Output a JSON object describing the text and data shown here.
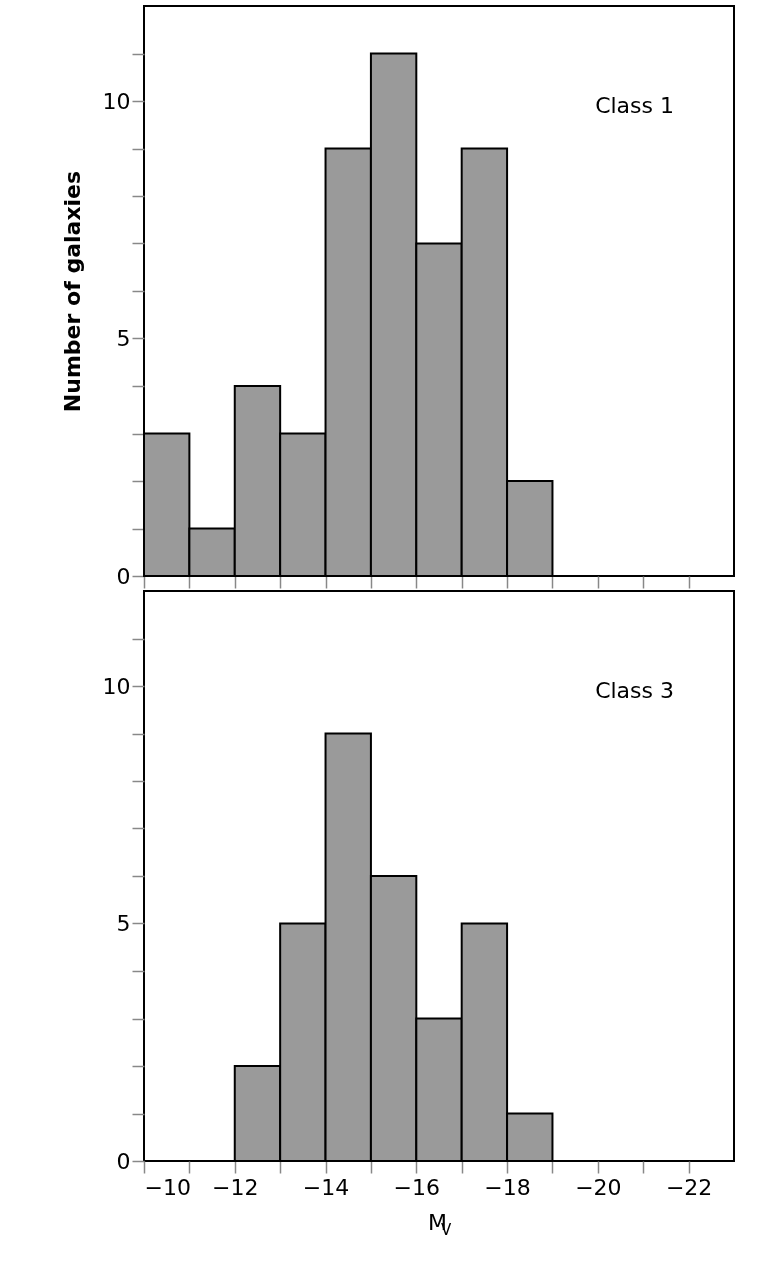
{
  "chart_data": [
    {
      "type": "histogram",
      "ylabel": "Number of galaxies",
      "annotations": [
        "Class 1"
      ],
      "color": "#9a9a9a",
      "bins": [
        -10,
        -11,
        -12,
        -13,
        -14,
        -15,
        -16,
        -17,
        -18,
        -19
      ],
      "values": [
        3,
        1,
        4,
        3,
        9,
        11,
        7,
        9,
        2
      ],
      "xlim": [
        -10,
        -23
      ],
      "ylim": [
        0,
        12
      ],
      "tick_labels": "y",
      "xticks": [
        -10,
        {
          "value": -11,
          "label": null
        },
        -12,
        {
          "value": -13,
          "label": null
        },
        -14,
        {
          "value": -15,
          "label": null
        },
        -16,
        {
          "value": -17,
          "label": null
        },
        -18,
        {
          "value": -19,
          "label": null
        },
        -20,
        {
          "value": -21,
          "label": null
        },
        -22
      ],
      "yticks": [
        0,
        {
          "value": 1,
          "label": null
        },
        {
          "value": 2,
          "label": null
        },
        {
          "value": 3,
          "label": null
        },
        {
          "value": 4,
          "label": null
        },
        5,
        {
          "value": 6,
          "label": null
        },
        {
          "value": 7,
          "label": null
        },
        {
          "value": 8,
          "label": null
        },
        {
          "value": 9,
          "label": null
        },
        10,
        {
          "value": 11,
          "label": null
        }
      ]
    },
    {
      "type": "histogram",
      "xlabel": "M$_{V}$",
      "annotations": [
        "Class 3"
      ],
      "color": "#9a9a9a",
      "bins": [
        -12,
        -13,
        -14,
        -15,
        -16,
        -17,
        -18,
        -19
      ],
      "values": [
        2,
        5,
        9,
        6,
        3,
        5,
        1
      ],
      "xlim": [
        -10,
        -23
      ],
      "ylim": [
        0,
        12
      ],
      "xticks": [
        -10,
        {
          "value": -11,
          "label": null
        },
        -12,
        {
          "value": -13,
          "label": null
        },
        -14,
        {
          "value": -15,
          "label": null
        },
        -16,
        {
          "value": -17,
          "label": null
        },
        -18,
        {
          "value": -19,
          "label": null
        },
        -20,
        {
          "value": -21,
          "label": null
        },
        -22
      ],
      "yticks": [
        0,
        {
          "value": 1,
          "label": null
        },
        {
          "value": 2,
          "label": null
        },
        {
          "value": 3,
          "label": null
        },
        {
          "value": 4,
          "label": null
        },
        5,
        {
          "value": 6,
          "label": null
        },
        {
          "value": 7,
          "label": null
        },
        {
          "value": 8,
          "label": null
        },
        {
          "value": 9,
          "label": null
        },
        10,
        {
          "value": 11,
          "label": null
        }
      ]
    }
  ]
}
